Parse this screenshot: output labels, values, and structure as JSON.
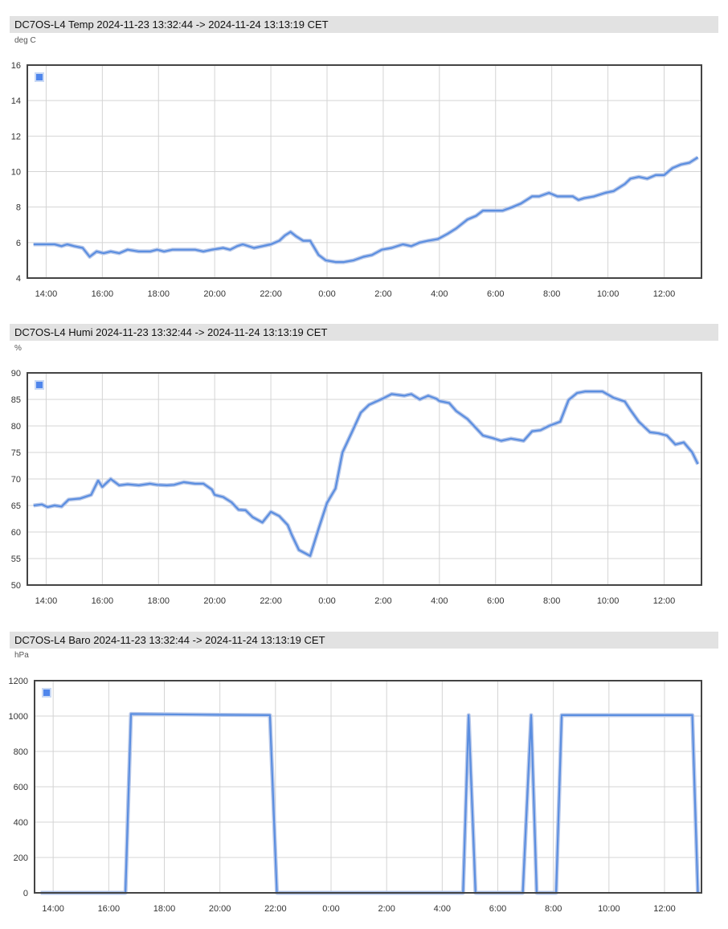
{
  "chart_data": [
    {
      "type": "line",
      "title": "DC7OS-L4 Temp 2024-11-23 13:32:44 -> 2024-11-24 13:13:19 CET",
      "ylabel": "deg C",
      "ylim": [
        4,
        16
      ],
      "yticks": [
        4,
        6,
        8,
        10,
        12,
        14,
        16
      ],
      "xlim": [
        13.33,
        37.33
      ],
      "xticks": [
        14,
        16,
        18,
        20,
        22,
        24,
        26,
        28,
        30,
        32,
        34,
        36
      ],
      "xtick_labels": [
        "14:00",
        "16:00",
        "18:00",
        "20:00",
        "22:00",
        "0:00",
        "2:00",
        "4:00",
        "6:00",
        "8:00",
        "10:00",
        "12:00"
      ],
      "grid": true,
      "legend": "top-left",
      "color": "#5b8ee0",
      "series": [
        {
          "x": [
            13.55,
            14.0,
            14.3,
            14.55,
            14.75,
            15.0,
            15.3,
            15.55,
            15.8,
            16.05,
            16.3,
            16.6,
            16.9,
            17.3,
            17.7,
            17.95,
            18.2,
            18.5,
            18.9,
            19.3,
            19.6,
            19.9,
            20.3,
            20.55,
            20.8,
            21.0,
            21.4,
            21.7,
            22.0,
            22.3,
            22.5,
            22.7,
            22.9,
            23.15,
            23.4,
            23.7,
            23.95,
            24.3,
            24.6,
            24.95,
            25.3,
            25.6,
            25.95,
            26.3,
            26.7,
            27.0,
            27.3,
            27.6,
            27.95,
            28.3,
            28.6,
            29.0,
            29.3,
            29.55,
            29.9,
            30.25,
            30.6,
            30.9,
            31.3,
            31.55,
            31.9,
            32.2,
            32.4,
            32.75,
            32.95,
            33.15,
            33.5,
            33.9,
            34.2,
            34.6,
            34.8,
            35.1,
            35.4,
            35.7,
            36.0,
            36.3,
            36.6,
            36.9,
            37.2
          ],
          "y": [
            5.9,
            5.9,
            5.9,
            5.8,
            5.9,
            5.8,
            5.7,
            5.2,
            5.5,
            5.4,
            5.5,
            5.4,
            5.6,
            5.5,
            5.5,
            5.6,
            5.5,
            5.6,
            5.6,
            5.6,
            5.5,
            5.6,
            5.7,
            5.6,
            5.8,
            5.9,
            5.7,
            5.8,
            5.9,
            6.1,
            6.4,
            6.6,
            6.35,
            6.1,
            6.1,
            5.3,
            5.0,
            4.9,
            4.9,
            5.0,
            5.2,
            5.3,
            5.6,
            5.7,
            5.9,
            5.8,
            6.0,
            6.1,
            6.2,
            6.5,
            6.8,
            7.3,
            7.5,
            7.8,
            7.8,
            7.8,
            8.0,
            8.2,
            8.6,
            8.6,
            8.8,
            8.6,
            8.6,
            8.6,
            8.4,
            8.5,
            8.6,
            8.8,
            8.9,
            9.3,
            9.6,
            9.7,
            9.6,
            9.8,
            9.8,
            10.2,
            10.4,
            10.5,
            10.8
          ]
        }
      ]
    },
    {
      "type": "line",
      "title": "DC7OS-L4 Humi 2024-11-23 13:32:44 -> 2024-11-24 13:13:19 CET",
      "ylabel": "%",
      "ylim": [
        50,
        90
      ],
      "yticks": [
        50,
        55,
        60,
        65,
        70,
        75,
        80,
        85,
        90
      ],
      "xlim": [
        13.33,
        37.33
      ],
      "xticks": [
        14,
        16,
        18,
        20,
        22,
        24,
        26,
        28,
        30,
        32,
        34,
        36
      ],
      "xtick_labels": [
        "14:00",
        "16:00",
        "18:00",
        "20:00",
        "22:00",
        "0:00",
        "2:00",
        "4:00",
        "6:00",
        "8:00",
        "10:00",
        "12:00"
      ],
      "grid": true,
      "legend": "top-left",
      "color": "#5b8ee0",
      "series": [
        {
          "x": [
            13.55,
            13.85,
            14.05,
            14.3,
            14.55,
            14.8,
            15.2,
            15.6,
            15.85,
            16.0,
            16.3,
            16.6,
            16.9,
            17.3,
            17.7,
            17.95,
            18.3,
            18.55,
            18.9,
            19.3,
            19.6,
            19.9,
            20.0,
            20.3,
            20.6,
            20.85,
            21.1,
            21.35,
            21.7,
            22.0,
            22.3,
            22.6,
            22.75,
            23.0,
            23.4,
            23.7,
            24.0,
            24.3,
            24.55,
            24.9,
            25.2,
            25.5,
            25.75,
            26.0,
            26.3,
            26.75,
            27.0,
            27.3,
            27.6,
            27.9,
            28.0,
            28.35,
            28.6,
            29.0,
            29.3,
            29.55,
            29.9,
            30.2,
            30.55,
            31.0,
            31.3,
            31.6,
            31.9,
            32.3,
            32.6,
            32.9,
            33.2,
            33.5,
            33.8,
            34.2,
            34.6,
            34.8,
            35.1,
            35.5,
            35.8,
            36.1,
            36.4,
            36.7,
            37.0,
            37.2
          ],
          "y": [
            65.0,
            65.2,
            64.7,
            65.0,
            64.8,
            66.1,
            66.3,
            67.0,
            69.7,
            68.5,
            70.0,
            68.8,
            69.0,
            68.8,
            69.1,
            68.9,
            68.8,
            68.9,
            69.4,
            69.1,
            69.1,
            68.0,
            67.0,
            66.6,
            65.6,
            64.2,
            64.1,
            62.8,
            61.8,
            63.8,
            63.0,
            61.3,
            59.4,
            56.6,
            55.5,
            60.6,
            65.5,
            68.2,
            75.0,
            79.0,
            82.5,
            84.0,
            84.6,
            85.2,
            86.0,
            85.7,
            86.0,
            85.0,
            85.7,
            85.1,
            84.7,
            84.3,
            82.8,
            81.3,
            79.6,
            78.2,
            77.7,
            77.2,
            77.6,
            77.2,
            79.0,
            79.2,
            80.0,
            80.8,
            84.9,
            86.2,
            86.5,
            86.5,
            86.5,
            85.3,
            84.6,
            83.0,
            80.8,
            78.8,
            78.6,
            78.2,
            76.5,
            76.9,
            75.0,
            72.8
          ]
        }
      ]
    },
    {
      "type": "line",
      "title": "DC7OS-L4 Baro 2024-11-23 13:32:44 -> 2024-11-24 13:13:19 CET",
      "ylabel": "hPa",
      "ylim": [
        0,
        1200
      ],
      "yticks": [
        0,
        200,
        400,
        600,
        800,
        1000,
        1200
      ],
      "xlim": [
        13.33,
        37.33
      ],
      "xticks": [
        14,
        16,
        18,
        20,
        22,
        24,
        26,
        28,
        30,
        32,
        34,
        36
      ],
      "xtick_labels": [
        "14:00",
        "16:00",
        "18:00",
        "20:00",
        "22:00",
        "0:00",
        "2:00",
        "4:00",
        "6:00",
        "8:00",
        "10:00",
        "12:00"
      ],
      "grid": true,
      "legend": "top-left",
      "color": "#5b8ee0",
      "series": [
        {
          "x": [
            13.55,
            16.6,
            16.8,
            18.0,
            20.0,
            21.8,
            22.05,
            28.75,
            28.95,
            29.2,
            30.9,
            31.2,
            31.4,
            32.1,
            32.3,
            37.0,
            37.2
          ],
          "y": [
            0,
            0,
            1012,
            1010,
            1007,
            1005,
            0,
            0,
            1005,
            0,
            0,
            1005,
            0,
            0,
            1005,
            1005,
            0
          ]
        }
      ]
    }
  ]
}
